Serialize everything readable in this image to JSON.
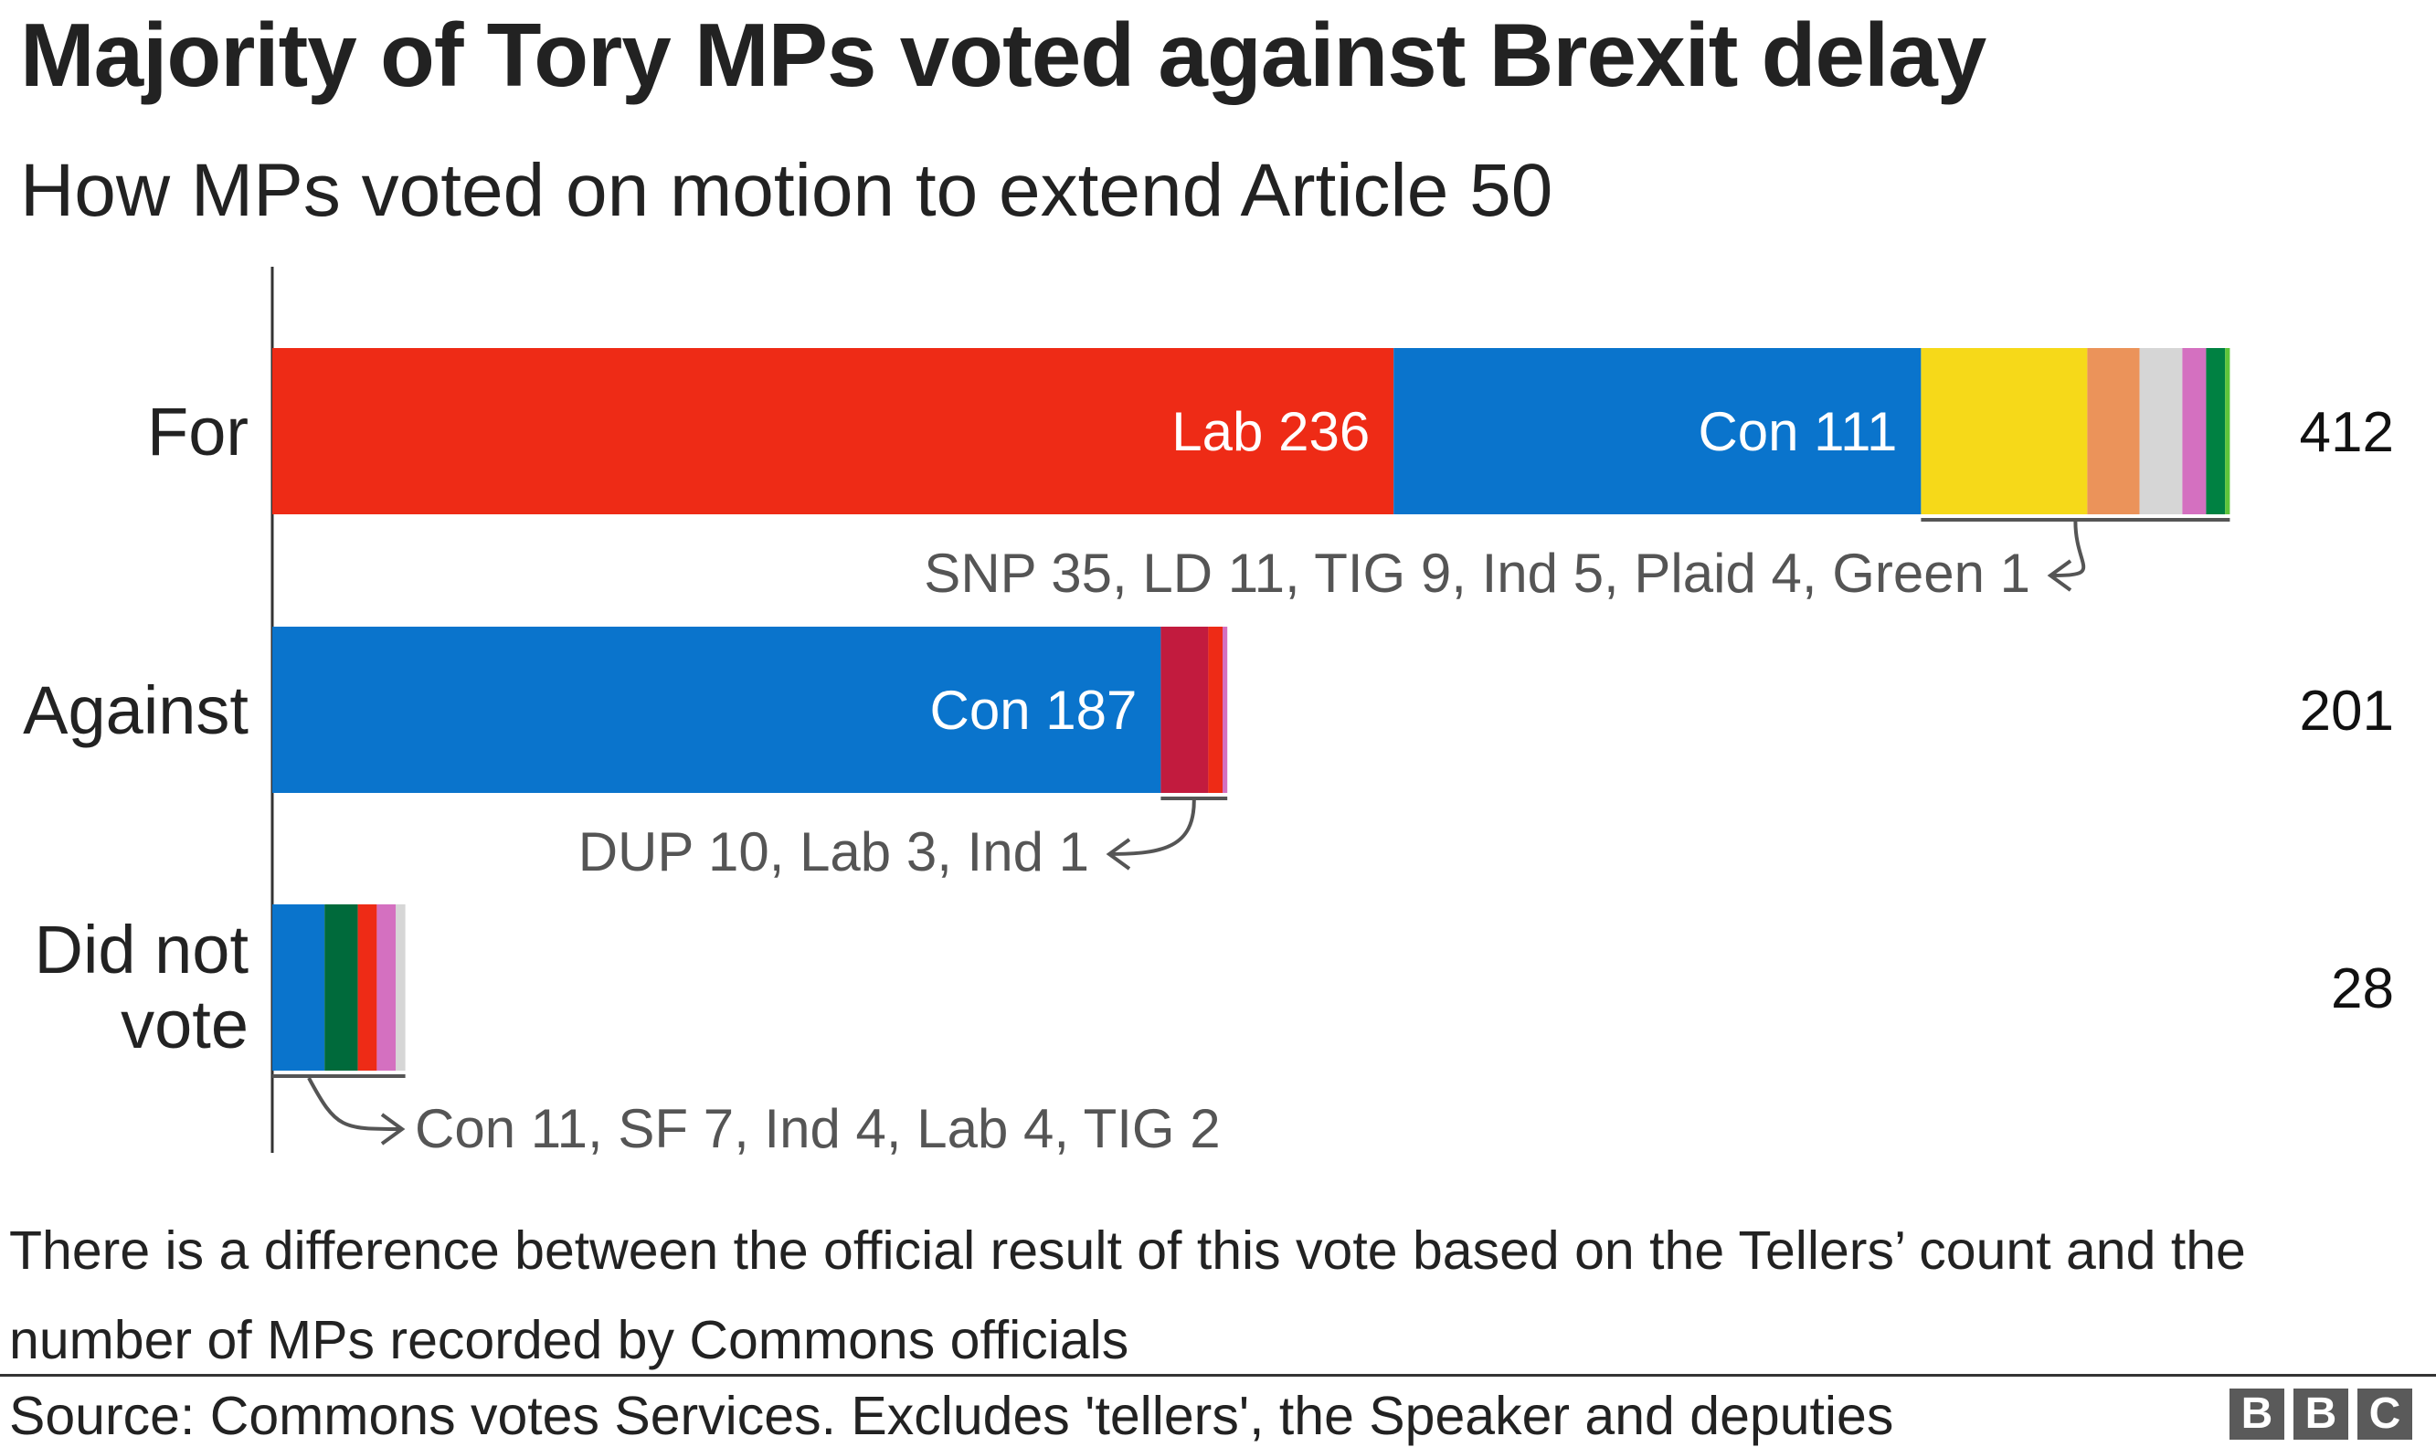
{
  "header": {
    "title": "Majority of Tory MPs voted against Brexit delay",
    "subtitle": "How MPs voted on motion to extend Article 50"
  },
  "chart_data": {
    "type": "bar",
    "orientation": "horizontal",
    "stacked": true,
    "categories": [
      "For",
      "Against",
      "Did not\nvote"
    ],
    "totals": [
      412,
      201,
      28
    ],
    "series": [
      {
        "category": "For",
        "segments": [
          {
            "party": "Lab",
            "value": 236,
            "color": "#ee2b16",
            "label": "Lab 236"
          },
          {
            "party": "Con",
            "value": 111,
            "color": "#0a74cc",
            "label": "Con 111"
          },
          {
            "party": "SNP",
            "value": 35,
            "color": "#f6d919"
          },
          {
            "party": "LD",
            "value": 11,
            "color": "#eb935a"
          },
          {
            "party": "TIG",
            "value": 9,
            "color": "#d6d6d6"
          },
          {
            "party": "Ind",
            "value": 5,
            "color": "#d470c0"
          },
          {
            "party": "Plaid",
            "value": 4,
            "color": "#008142"
          },
          {
            "party": "Green",
            "value": 1,
            "color": "#5ec53b"
          }
        ]
      },
      {
        "category": "Against",
        "segments": [
          {
            "party": "Con",
            "value": 187,
            "color": "#0a74cc",
            "label": "Con 187"
          },
          {
            "party": "DUP",
            "value": 10,
            "color": "#c21b3e"
          },
          {
            "party": "Lab",
            "value": 3,
            "color": "#ee2b16"
          },
          {
            "party": "Ind",
            "value": 1,
            "color": "#d470c0"
          }
        ]
      },
      {
        "category": "Did not vote",
        "segments": [
          {
            "party": "Con",
            "value": 11,
            "color": "#0a74cc"
          },
          {
            "party": "SF",
            "value": 7,
            "color": "#006a3b"
          },
          {
            "party": "Ind",
            "value": 4,
            "color": "#ee2b16"
          },
          {
            "party": "Lab",
            "value": 4,
            "color": "#d470c0"
          },
          {
            "party": "TIG",
            "value": 2,
            "color": "#d6d6d6"
          }
        ]
      }
    ],
    "annotations": [
      "SNP 35, LD 11, TIG 9, Ind 5, Plaid 4, Green 1",
      "DUP 10, Lab 3, Ind 1",
      "Con 11, SF 7, Ind 4, Lab 4, TIG 2"
    ]
  },
  "note": "There is a difference between the official result of this vote based on the Tellers’ count and the number of MPs recorded by Commons officials",
  "footer": {
    "source": "Source: Commons votes Services. Excludes 'tellers', the Speaker and deputies",
    "logo": [
      "B",
      "B",
      "C"
    ]
  }
}
